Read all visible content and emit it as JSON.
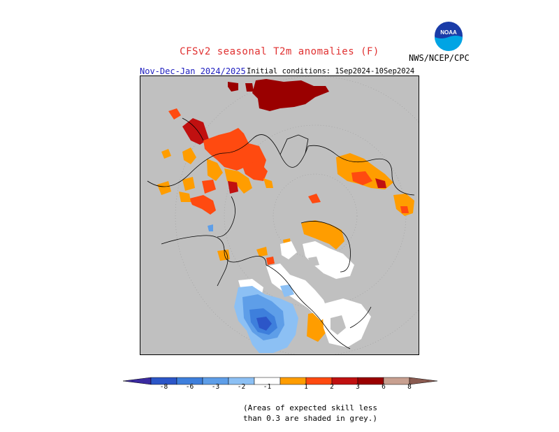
{
  "title": "CFSv2 seasonal T2m anomalies (F)",
  "subtitle_left": "Nov-Dec-Jan 2024/2025",
  "subtitle_right": "Initial conditions: 1Sep2024-10Sep2024",
  "org": "NWS/NCEP/CPC",
  "logo_text": "NOAA",
  "colorbar": {
    "tick_labels": [
      "-8",
      "-6",
      "-3",
      "-2",
      "-1",
      "1",
      "2",
      "3",
      "6",
      "8"
    ],
    "colors": [
      "#3a2aa0",
      "#2c56c8",
      "#3e7fdc",
      "#5e9ee8",
      "#8cc0f4",
      "#ffffff",
      "#ff9d00",
      "#ff4a10",
      "#c01010",
      "#9a0000",
      "#c8a090",
      "#8a5a50"
    ]
  },
  "skill_note_line1": "(Areas of expected skill less",
  "skill_note_line2": "than 0.3 are shaded in grey.)",
  "map_colors": {
    "no_skill": "#c0c0c0",
    "neutral": "#ffffff",
    "warm_1": "#ff9d00",
    "warm_2": "#ff4a10",
    "warm_3": "#c01010",
    "cold_1": "#8cc0f4",
    "cold_2": "#5e9ee8",
    "cold_3": "#3e7fdc",
    "cold_4": "#2c56c8"
  }
}
